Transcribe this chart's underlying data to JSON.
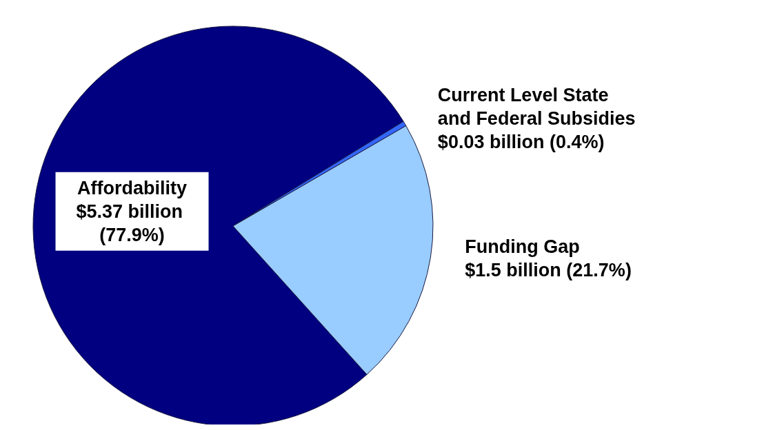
{
  "chart_data": {
    "type": "pie",
    "categories": [
      "Affordability",
      "Current Level State and Federal Subsidies",
      "Funding Gap"
    ],
    "values": [
      77.9,
      0.4,
      21.7
    ],
    "colors": [
      "#000080",
      "#3366ff",
      "#99ccff"
    ],
    "value_labels": [
      "$5.37 billion (77.9%)",
      "$0.03 billion (0.4%)",
      "$1.5 billion (21.7%)"
    ],
    "legend": false
  }
}
